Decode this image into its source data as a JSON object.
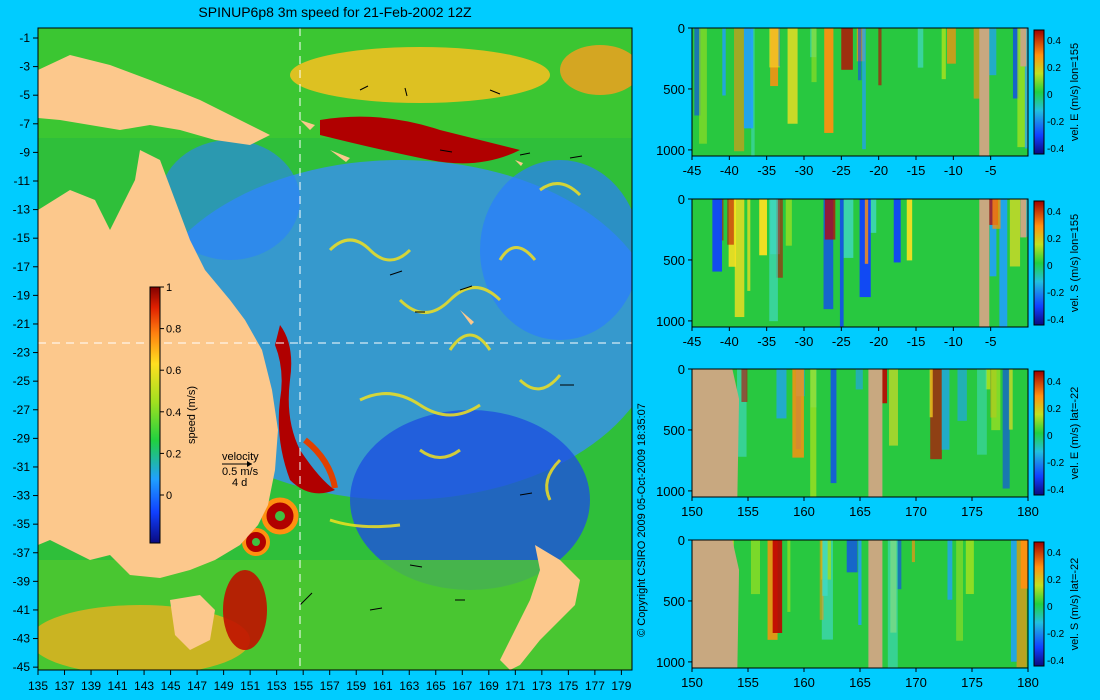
{
  "main_map": {
    "title": "SPINUP6p8 3m speed for 21-Feb-2002 12Z",
    "xticks": [
      "135",
      "137",
      "139",
      "141",
      "143",
      "145",
      "147",
      "149",
      "151",
      "153",
      "155",
      "157",
      "159",
      "161",
      "163",
      "165",
      "167",
      "169",
      "171",
      "173",
      "175",
      "177",
      "179"
    ],
    "yticks": [
      "-1",
      "-3",
      "-5",
      "-7",
      "-9",
      "-11",
      "-13",
      "-15",
      "-17",
      "-19",
      "-21",
      "-23",
      "-25",
      "-27",
      "-29",
      "-31",
      "-33",
      "-35",
      "-37",
      "-39",
      "-41",
      "-43",
      "-45"
    ],
    "colorbar": {
      "label": "speed (m/s)",
      "ticks": [
        "1",
        "0.8",
        "0.6",
        "0.4",
        "0.2",
        "0"
      ],
      "range": [
        -0.2,
        1
      ]
    },
    "velocity_key": {
      "title": "velocity",
      "speed": "0.5 m/s",
      "duration": "4 d"
    },
    "crosshair": {
      "lon": 155,
      "lat": -22
    },
    "copyright": "© Copyright CSIRO 2009  05-Oct-2009 18:35:07"
  },
  "chart_data": [
    {
      "type": "heatmap",
      "title": "",
      "ylabel_right": "vel. E (m/s) lon=155",
      "xticks": [
        "-45",
        "-40",
        "-35",
        "-30",
        "-25",
        "-20",
        "-15",
        "-10",
        "-5"
      ],
      "yticks": [
        "0",
        "500",
        "1000"
      ],
      "colorbar_ticks": [
        "0.4",
        "0.2",
        "0",
        "-0.2",
        "-0.4"
      ],
      "xlim": [
        -45,
        0
      ],
      "ylim": [
        1050,
        0
      ]
    },
    {
      "type": "heatmap",
      "title": "",
      "ylabel_right": "vel. S (m/s) lon=155",
      "xticks": [
        "-45",
        "-40",
        "-35",
        "-30",
        "-25",
        "-20",
        "-15",
        "-10",
        "-5"
      ],
      "yticks": [
        "0",
        "500",
        "1000"
      ],
      "colorbar_ticks": [
        "0.4",
        "0.2",
        "0",
        "-0.2",
        "-0.4"
      ],
      "xlim": [
        -45,
        0
      ],
      "ylim": [
        1050,
        0
      ]
    },
    {
      "type": "heatmap",
      "title": "",
      "ylabel_right": "vel. E (m/s) lat=-22",
      "xticks": [
        "150",
        "155",
        "160",
        "165",
        "170",
        "175",
        "180"
      ],
      "yticks": [
        "0",
        "500",
        "1000"
      ],
      "colorbar_ticks": [
        "0.4",
        "0.2",
        "0",
        "-0.2",
        "-0.4"
      ],
      "xlim": [
        150,
        180
      ],
      "ylim": [
        1050,
        0
      ]
    },
    {
      "type": "heatmap",
      "title": "",
      "ylabel_right": "vel. S (m/s) lat=-22",
      "xticks": [
        "150",
        "155",
        "160",
        "165",
        "170",
        "175",
        "180"
      ],
      "yticks": [
        "0",
        "500",
        "1000"
      ],
      "colorbar_ticks": [
        "0.4",
        "0.2",
        "0",
        "-0.2",
        "-0.4"
      ],
      "xlim": [
        150,
        180
      ],
      "ylim": [
        1050,
        0
      ]
    }
  ],
  "colors": {
    "background": "#00ccff",
    "land": "#fcc88c",
    "section_land": "#c8a880",
    "ocean_low": "#2060ff",
    "ocean_mid": "#20c020",
    "ocean_high": "#c00000"
  }
}
